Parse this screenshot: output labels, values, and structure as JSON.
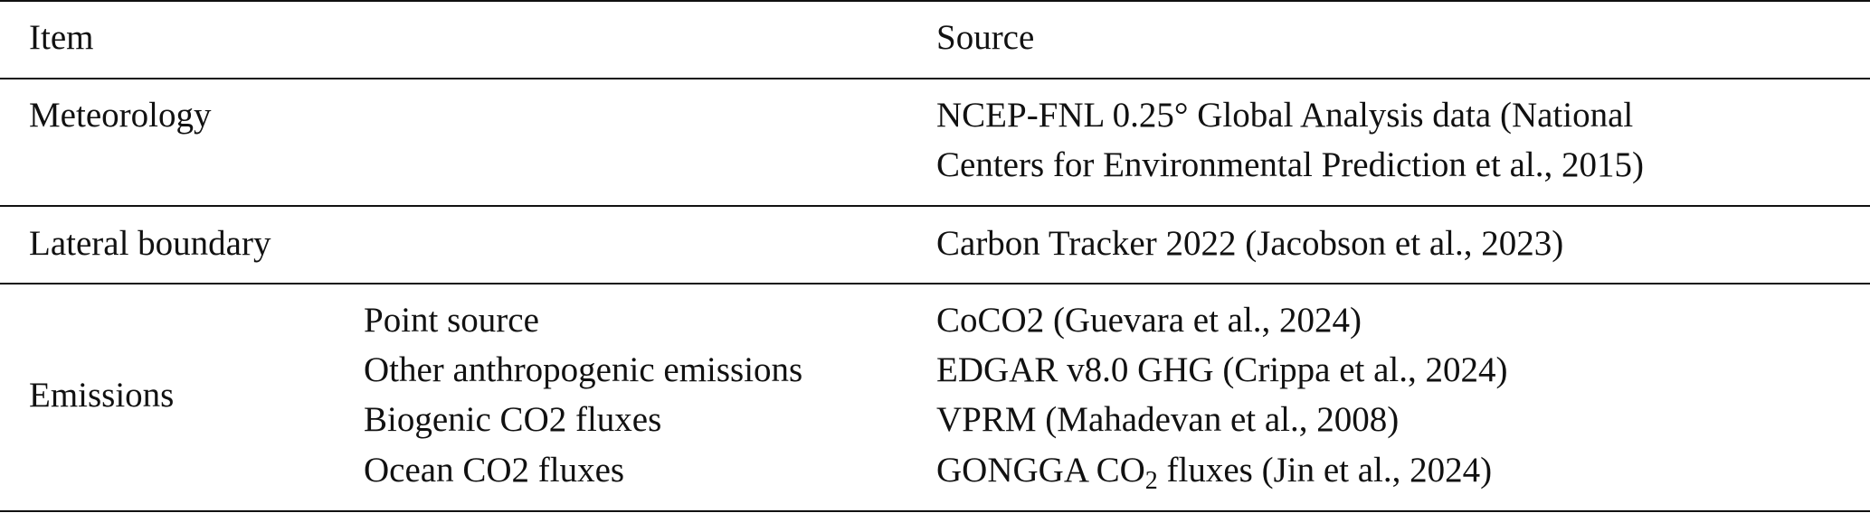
{
  "table": {
    "header": [
      "Item",
      "Source"
    ],
    "rows": [
      {
        "item": "Meteorology",
        "source_lines": [
          "NCEP-FNL 0.25° Global Analysis data (National",
          "Centers for Environmental Prediction et al., 2015)"
        ]
      },
      {
        "item": "Lateral boundary",
        "source": "Carbon Tracker 2022 (Jacobson et al., 2023)"
      },
      {
        "item": "Emissions",
        "subitems": [
          {
            "name": "Point source",
            "source": "CoCO2 (Guevara et al., 2024)"
          },
          {
            "name": "Other anthropogenic emissions",
            "source": "EDGAR v8.0 GHG (Crippa et al., 2024)"
          },
          {
            "name": "Biogenic CO2 fluxes",
            "source": "VPRM (Mahadevan et al., 2008)"
          },
          {
            "name": "Ocean CO2 fluxes",
            "source": {
              "text": "GONGGA CO",
              "subscript": "2",
              "rest": " fluxes (Jin et al., 2024)"
            }
          }
        ]
      }
    ]
  }
}
